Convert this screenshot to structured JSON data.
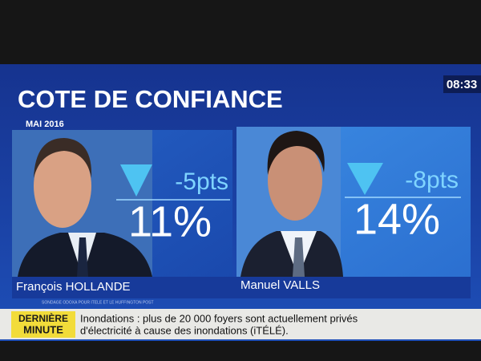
{
  "header": {
    "title": "COTE DE CONFIANCE",
    "date": "MAI 2016",
    "clock": "08:33"
  },
  "panels": [
    {
      "name": "François HOLLANDE",
      "change": "-5pts",
      "score": "11%"
    },
    {
      "name": "Manuel VALLS",
      "change": "-8pts",
      "score": "14%"
    }
  ],
  "source": "SONDAGE ODOXA POUR ITELE ET LE HUFFINGTON POST",
  "ticker": {
    "label_line1": "DERNIÈRE",
    "label_line2": "MINUTE",
    "line1": "Inondations : plus de 20 000 foyers sont actuellement privés",
    "line2": "d'électricité à cause des inondations (iTÉLÉ)."
  }
}
